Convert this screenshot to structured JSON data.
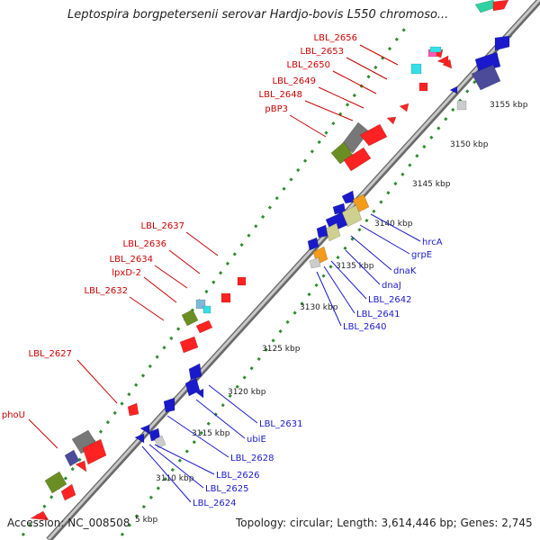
{
  "title": "Leptospira borgpetersenii serovar Hardjo-bovis L550 chromoso...",
  "footer": {
    "accession": "Accession: NC_008508",
    "summary": "Topology: circular; Length: 3,614,446 bp; Genes: 2,745"
  },
  "colors": {
    "backbone": "#999999",
    "ticks": "#2e8b2e",
    "forward_label": "#cc0000",
    "reverse_label": "#1a1acc"
  },
  "kbp_labels": [
    "3110 kbp",
    "3115 kbp",
    "3120 kbp",
    "3125 kbp",
    "3130 kbp",
    "3135 kbp",
    "3140 kbp",
    "3145 kbp",
    "3150 kbp",
    "3155 kbp",
    "5 kbp"
  ],
  "forward_genes": [
    "LBL_2656",
    "LBL_2653",
    "LBL_2650",
    "LBL_2649",
    "LBL_2648",
    "pBP3",
    "LBL_2637",
    "LBL_2636",
    "LBL_2634",
    "lpxD-2",
    "LBL_2632",
    "LBL_2627",
    "phoU"
  ],
  "reverse_genes": [
    "hrcA",
    "grpE",
    "dnaK",
    "dnaJ",
    "LBL_2642",
    "LBL_2641",
    "LBL_2640",
    "LBL_2631",
    "ubiE",
    "LBL_2628",
    "LBL_2626",
    "LBL_2625",
    "LBL_2624"
  ]
}
